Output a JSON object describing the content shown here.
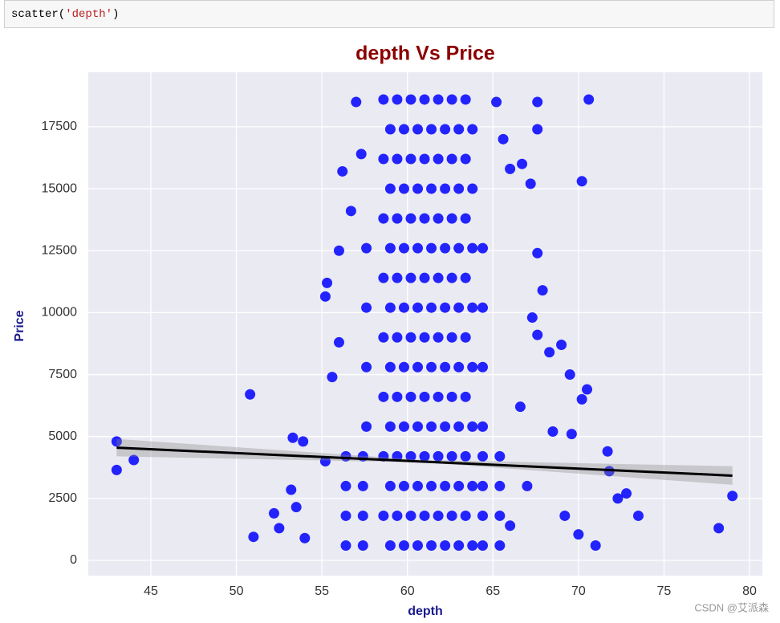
{
  "code": {
    "parts": [
      "scatter(",
      "'depth'",
      ")"
    ]
  },
  "chart_data": {
    "type": "scatter",
    "title": "depth Vs Price",
    "x_label": "depth",
    "y_label": "Price",
    "color": "#0000ff",
    "line_color": "#000000",
    "grid": true,
    "xlim": [
      41.34,
      80.75
    ],
    "ylim": [
      -615,
      19700
    ],
    "xticks": [
      45,
      50,
      55,
      60,
      65,
      70,
      75,
      80
    ],
    "yticks": [
      0,
      2500,
      5000,
      7500,
      10000,
      12500,
      15000,
      17500
    ],
    "points": [
      [
        58.6,
        18600
      ],
      [
        59.4,
        18600
      ],
      [
        60.2,
        18600
      ],
      [
        61.0,
        18600
      ],
      [
        61.8,
        18600
      ],
      [
        62.6,
        18600
      ],
      [
        63.4,
        18600
      ],
      [
        59.0,
        17400
      ],
      [
        59.8,
        17400
      ],
      [
        60.6,
        17400
      ],
      [
        61.4,
        17400
      ],
      [
        62.2,
        17400
      ],
      [
        63.0,
        17400
      ],
      [
        63.8,
        17400
      ],
      [
        58.6,
        16200
      ],
      [
        59.4,
        16200
      ],
      [
        60.2,
        16200
      ],
      [
        61.0,
        16200
      ],
      [
        61.8,
        16200
      ],
      [
        62.6,
        16200
      ],
      [
        63.4,
        16200
      ],
      [
        59.0,
        15000
      ],
      [
        59.8,
        15000
      ],
      [
        60.6,
        15000
      ],
      [
        61.4,
        15000
      ],
      [
        62.2,
        15000
      ],
      [
        63.0,
        15000
      ],
      [
        63.8,
        15000
      ],
      [
        58.6,
        13800
      ],
      [
        59.4,
        13800
      ],
      [
        60.2,
        13800
      ],
      [
        61.0,
        13800
      ],
      [
        61.8,
        13800
      ],
      [
        62.6,
        13800
      ],
      [
        63.4,
        13800
      ],
      [
        59.0,
        12600
      ],
      [
        59.8,
        12600
      ],
      [
        60.6,
        12600
      ],
      [
        61.4,
        12600
      ],
      [
        62.2,
        12600
      ],
      [
        63.0,
        12600
      ],
      [
        63.8,
        12600
      ],
      [
        58.6,
        11400
      ],
      [
        59.4,
        11400
      ],
      [
        60.2,
        11400
      ],
      [
        61.0,
        11400
      ],
      [
        61.8,
        11400
      ],
      [
        62.6,
        11400
      ],
      [
        63.4,
        11400
      ],
      [
        59.0,
        10200
      ],
      [
        59.8,
        10200
      ],
      [
        60.6,
        10200
      ],
      [
        61.4,
        10200
      ],
      [
        62.2,
        10200
      ],
      [
        63.0,
        10200
      ],
      [
        63.8,
        10200
      ],
      [
        58.6,
        9000
      ],
      [
        59.4,
        9000
      ],
      [
        60.2,
        9000
      ],
      [
        61.0,
        9000
      ],
      [
        61.8,
        9000
      ],
      [
        62.6,
        9000
      ],
      [
        63.4,
        9000
      ],
      [
        59.0,
        7800
      ],
      [
        59.8,
        7800
      ],
      [
        60.6,
        7800
      ],
      [
        61.4,
        7800
      ],
      [
        62.2,
        7800
      ],
      [
        63.0,
        7800
      ],
      [
        63.8,
        7800
      ],
      [
        58.6,
        6600
      ],
      [
        59.4,
        6600
      ],
      [
        60.2,
        6600
      ],
      [
        61.0,
        6600
      ],
      [
        61.8,
        6600
      ],
      [
        62.6,
        6600
      ],
      [
        63.4,
        6600
      ],
      [
        59.0,
        5400
      ],
      [
        59.8,
        5400
      ],
      [
        60.6,
        5400
      ],
      [
        61.4,
        5400
      ],
      [
        62.2,
        5400
      ],
      [
        63.0,
        5400
      ],
      [
        63.8,
        5400
      ],
      [
        58.6,
        4200
      ],
      [
        59.4,
        4200
      ],
      [
        60.2,
        4200
      ],
      [
        61.0,
        4200
      ],
      [
        61.8,
        4200
      ],
      [
        62.6,
        4200
      ],
      [
        63.4,
        4200
      ],
      [
        59.0,
        3000
      ],
      [
        59.8,
        3000
      ],
      [
        60.6,
        3000
      ],
      [
        61.4,
        3000
      ],
      [
        62.2,
        3000
      ],
      [
        63.0,
        3000
      ],
      [
        63.8,
        3000
      ],
      [
        58.6,
        1800
      ],
      [
        59.4,
        1800
      ],
      [
        60.2,
        1800
      ],
      [
        61.0,
        1800
      ],
      [
        61.8,
        1800
      ],
      [
        62.6,
        1800
      ],
      [
        63.4,
        1800
      ],
      [
        59.0,
        600
      ],
      [
        59.8,
        600
      ],
      [
        60.6,
        600
      ],
      [
        61.4,
        600
      ],
      [
        62.2,
        600
      ],
      [
        63.0,
        600
      ],
      [
        63.8,
        600
      ],
      [
        56.4,
        600
      ],
      [
        57.4,
        600
      ],
      [
        64.4,
        600
      ],
      [
        65.4,
        600
      ],
      [
        56.4,
        1800
      ],
      [
        57.4,
        1800
      ],
      [
        64.4,
        1800
      ],
      [
        65.4,
        1800
      ],
      [
        56.4,
        3000
      ],
      [
        57.4,
        3000
      ],
      [
        64.4,
        3000
      ],
      [
        65.4,
        3000
      ],
      [
        56.4,
        4200
      ],
      [
        57.4,
        4200
      ],
      [
        64.4,
        4200
      ],
      [
        65.4,
        4200
      ],
      [
        57.6,
        5400
      ],
      [
        64.4,
        5400
      ],
      [
        57.6,
        7800
      ],
      [
        64.4,
        7800
      ],
      [
        57.6,
        10200
      ],
      [
        64.4,
        10200
      ],
      [
        57.6,
        12600
      ],
      [
        64.4,
        12600
      ],
      [
        43,
        4800
      ],
      [
        43,
        3650
      ],
      [
        44,
        4050
      ],
      [
        50.8,
        6700
      ],
      [
        51,
        950
      ],
      [
        52.2,
        1900
      ],
      [
        52.5,
        1300
      ],
      [
        53.2,
        2850
      ],
      [
        53.3,
        4950
      ],
      [
        53.9,
        4800
      ],
      [
        53.5,
        2150
      ],
      [
        54,
        900
      ],
      [
        55.2,
        10650
      ],
      [
        55.3,
        11200
      ],
      [
        55.2,
        4000
      ],
      [
        56,
        12500
      ],
      [
        56.2,
        15700
      ],
      [
        56.7,
        14100
      ],
      [
        57.3,
        16400
      ],
      [
        57,
        18500
      ],
      [
        55.6,
        7400
      ],
      [
        56,
        8800
      ],
      [
        65.2,
        18500
      ],
      [
        65.6,
        17000
      ],
      [
        66,
        15800
      ],
      [
        66.7,
        16000
      ],
      [
        67.2,
        15200
      ],
      [
        67.6,
        18500
      ],
      [
        67.6,
        17400
      ],
      [
        67.6,
        12400
      ],
      [
        67.9,
        10900
      ],
      [
        67.3,
        9800
      ],
      [
        67.6,
        9100
      ],
      [
        68.3,
        8400
      ],
      [
        69,
        8700
      ],
      [
        69.5,
        7500
      ],
      [
        70.2,
        6500
      ],
      [
        70.6,
        18600
      ],
      [
        70.2,
        15300
      ],
      [
        70.5,
        6900
      ],
      [
        71.7,
        4400
      ],
      [
        71.8,
        3600
      ],
      [
        72.3,
        2500
      ],
      [
        72.8,
        2700
      ],
      [
        73.5,
        1800
      ],
      [
        71,
        600
      ],
      [
        70,
        1050
      ],
      [
        78.2,
        1300
      ],
      [
        79,
        2600
      ],
      [
        69.2,
        1800
      ],
      [
        68.5,
        5200
      ],
      [
        69.6,
        5100
      ],
      [
        66.6,
        6200
      ],
      [
        66,
        1400
      ],
      [
        67,
        3000
      ]
    ],
    "regression": {
      "x": [
        43,
        79
      ],
      "values": [
        4550,
        3420
      ]
    },
    "confidence_band": {
      "x": [
        43,
        61,
        79
      ],
      "lower": [
        4200,
        3950,
        3050
      ],
      "upper": [
        4900,
        4050,
        3800
      ]
    },
    "watermark": "CSDN @艾派森"
  }
}
